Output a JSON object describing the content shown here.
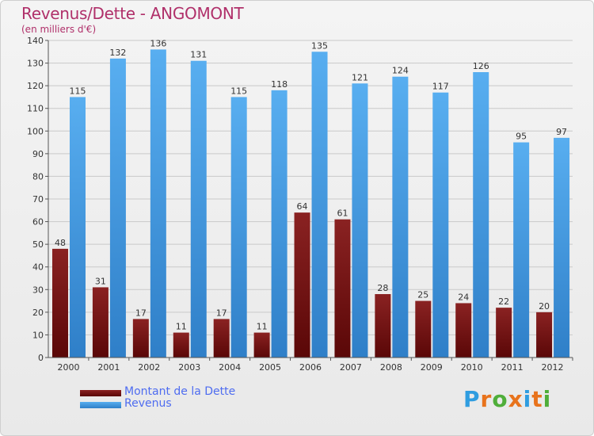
{
  "title": "Revenus/Dette - ANGOMONT",
  "subtitle": "(en milliers d'€)",
  "legend": [
    {
      "label": "Montant de la Dette",
      "color": "#6b0d0d"
    },
    {
      "label": "Revenus",
      "color": "#4aa0e6"
    }
  ],
  "logo": {
    "text": "Proxiti"
  },
  "chart_data": {
    "type": "bar",
    "categories": [
      "2000",
      "2001",
      "2002",
      "2003",
      "2004",
      "2005",
      "2006",
      "2007",
      "2008",
      "2009",
      "2010",
      "2011",
      "2012"
    ],
    "series": [
      {
        "name": "Montant de la Dette",
        "values": [
          48,
          31,
          17,
          11,
          17,
          11,
          64,
          61,
          28,
          25,
          24,
          22,
          20
        ],
        "color": "#7a1515"
      },
      {
        "name": "Revenus",
        "values": [
          115,
          132,
          136,
          131,
          115,
          118,
          135,
          121,
          124,
          117,
          126,
          95,
          97
        ],
        "color": "#4aa0e6"
      }
    ],
    "ylim": [
      0,
      140
    ],
    "yticks": [
      0,
      10,
      20,
      30,
      40,
      50,
      60,
      70,
      80,
      90,
      100,
      110,
      120,
      130,
      140
    ],
    "grid": true,
    "legend_position": "bottom-left"
  }
}
